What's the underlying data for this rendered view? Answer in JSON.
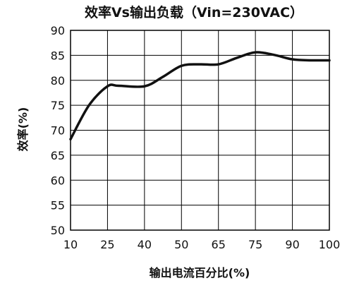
{
  "chart_data": {
    "type": "line",
    "title": "效率Vs输出负载（Vin=230VAC）",
    "xlabel": "输出电流百分比(%)",
    "ylabel": "效率(%)",
    "x_categories": [
      "10",
      "25",
      "40",
      "50",
      "65",
      "75",
      "90",
      "100"
    ],
    "y_ticks": [
      50,
      55,
      60,
      65,
      70,
      75,
      80,
      85,
      90
    ],
    "ylim": [
      50,
      90
    ],
    "grid": true,
    "legend": "none",
    "series": [
      {
        "x_index": [
          0,
          0.5,
          1,
          1.3,
          2,
          2.5,
          3,
          3.5,
          4,
          4.5,
          5,
          5.5,
          6,
          6.5,
          7
        ],
        "values": [
          68.2,
          75.0,
          78.8,
          78.9,
          78.8,
          80.7,
          82.9,
          83.2,
          83.2,
          84.5,
          85.6,
          85.1,
          84.2,
          84.0,
          84.0
        ]
      }
    ],
    "colors": {
      "line": "#111111",
      "grid": "#000000",
      "frame": "#000000"
    }
  }
}
